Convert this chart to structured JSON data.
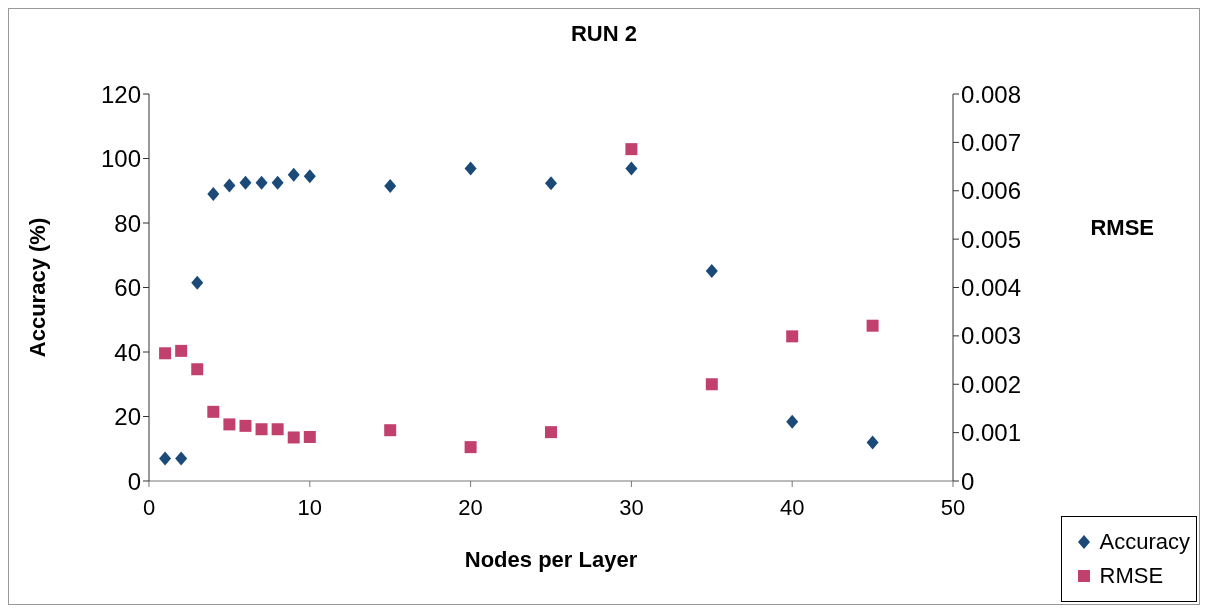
{
  "chart_data": {
    "type": "scatter",
    "title": "RUN 2",
    "xlabel": "Nodes per Layer",
    "ylabel": "Accuracy (%)",
    "y2label": "RMSE",
    "xlim": [
      0,
      50
    ],
    "xticks": [
      0,
      10,
      20,
      30,
      40,
      50
    ],
    "ylim": [
      0,
      120
    ],
    "yticks": [
      0,
      20,
      40,
      60,
      80,
      100,
      120
    ],
    "y2lim": [
      0,
      0.008
    ],
    "y2ticks": [
      0,
      0.001,
      0.002,
      0.003,
      0.004,
      0.005,
      0.006,
      0.007,
      0.008
    ],
    "legend": "bottom right",
    "x": [
      1,
      2,
      3,
      4,
      5,
      6,
      7,
      8,
      9,
      10,
      15,
      20,
      25,
      30,
      35,
      40,
      45
    ],
    "series": [
      {
        "name": "Accuracy",
        "color": "#1b4a78",
        "marker": "diamond",
        "values": [
          7,
          7,
          61.5,
          89,
          91.6,
          92.5,
          92.5,
          92.5,
          95,
          94.5,
          91.5,
          96.9,
          92.3,
          96.9,
          65.1,
          18.4,
          11.9
        ]
      },
      {
        "name": "RMSE",
        "color": "#c2406e",
        "marker": "square",
        "axis": "y2",
        "values": [
          0.00264,
          0.00269,
          0.00231,
          0.00143,
          0.00117,
          0.00114,
          0.00107,
          0.00107,
          0.0009,
          0.00091,
          0.00105,
          0.0007,
          0.00101,
          0.00686,
          0.002,
          0.00299,
          0.00321
        ]
      }
    ]
  }
}
